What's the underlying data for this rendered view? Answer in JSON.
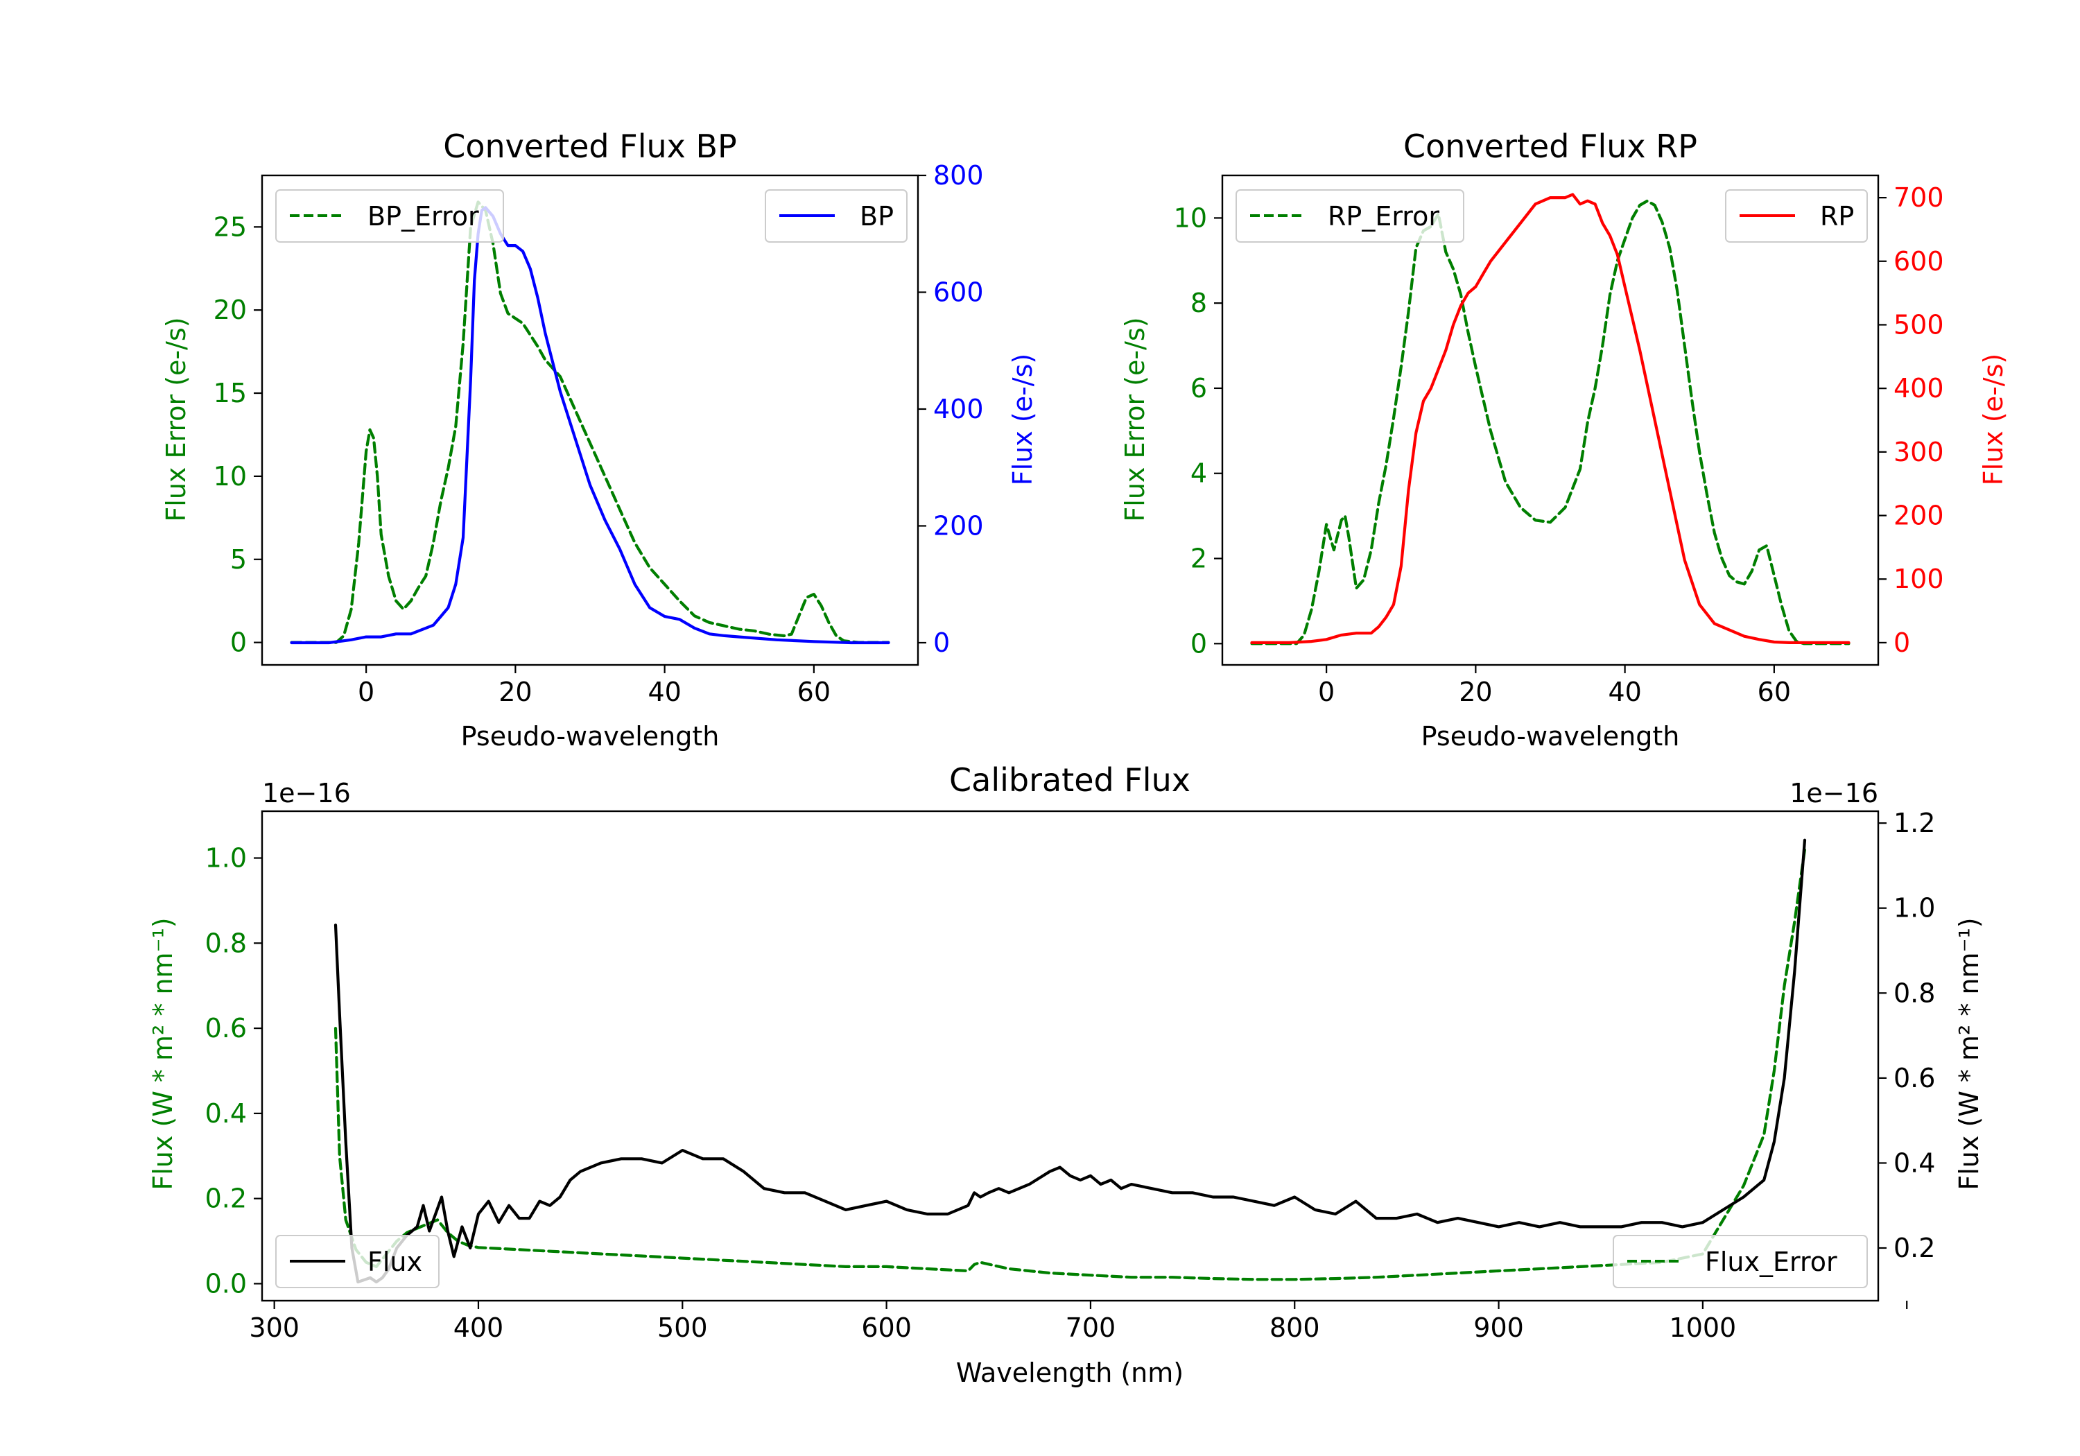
{
  "figure": {
    "background": "#ffffff"
  },
  "colors": {
    "green": "#007f00",
    "blue": "#0000ff",
    "red": "#ff0000",
    "black": "#000000"
  },
  "chart_data": [
    {
      "id": "bp",
      "type": "line",
      "title": "Converted Flux BP",
      "xlabel": "Pseudo-wavelength",
      "xlim": [
        -13.95,
        73.95
      ],
      "xticks": [
        0,
        20,
        40,
        60
      ],
      "left_axis": {
        "label": "Flux Error (e-/s)",
        "color": "#007f00",
        "lim": [
          -1.35,
          28.1
        ],
        "ticks": [
          0,
          5,
          10,
          15,
          20,
          25
        ],
        "tick_labels": [
          "0",
          "5",
          "10",
          "15",
          "20",
          "25"
        ]
      },
      "right_axis": {
        "label": "Flux (e-/s)",
        "color": "#0000ff",
        "lim": [
          -38,
          800
        ],
        "ticks": [
          0,
          200,
          400,
          600,
          800
        ],
        "tick_labels": [
          "0",
          "200",
          "400",
          "600",
          "800"
        ]
      },
      "series": [
        {
          "name": "BP_Error",
          "axis": "left",
          "style": "dashed",
          "color": "#007f00",
          "x": [
            -10,
            -4,
            -3,
            -2,
            -1,
            0,
            0.5,
            1,
            1.5,
            2,
            3,
            4,
            5,
            6,
            7,
            8,
            9,
            10,
            11,
            12,
            13,
            14,
            15,
            16,
            17,
            18,
            19,
            20,
            21,
            22,
            23,
            24,
            25,
            26,
            27,
            28,
            29,
            30,
            32,
            34,
            36,
            38,
            40,
            42,
            44,
            46,
            48,
            50,
            52,
            54,
            56,
            57,
            58,
            59,
            60,
            61,
            62,
            63,
            64,
            66,
            68,
            70
          ],
          "y": [
            0,
            0,
            0.4,
            2,
            6,
            11.5,
            12.8,
            12.3,
            10,
            6.5,
            4,
            2.5,
            2,
            2.5,
            3.3,
            4,
            6,
            8.5,
            10.5,
            13,
            18,
            25,
            26.5,
            26,
            24,
            21,
            19.8,
            19.5,
            19.2,
            18.5,
            17.8,
            17,
            16.5,
            16,
            15,
            14,
            13,
            12,
            10,
            8,
            6,
            4.5,
            3.5,
            2.5,
            1.6,
            1.2,
            1,
            0.8,
            0.7,
            0.5,
            0.4,
            0.5,
            1.6,
            2.7,
            2.9,
            2.2,
            1.2,
            0.4,
            0.1,
            0,
            0,
            0
          ]
        },
        {
          "name": "BP",
          "axis": "right",
          "style": "solid",
          "color": "#0000ff",
          "x": [
            -10,
            -5,
            -2,
            0,
            2,
            4,
            6,
            8,
            9,
            10,
            11,
            12,
            13,
            14,
            14.5,
            15,
            15.5,
            16,
            17,
            18,
            19,
            20,
            21,
            22,
            23,
            24,
            25,
            26,
            28,
            30,
            32,
            34,
            36,
            38,
            40,
            42,
            44,
            46,
            48,
            50,
            55,
            60,
            65,
            70
          ],
          "y": [
            0,
            0,
            5,
            10,
            10,
            15,
            15,
            25,
            30,
            45,
            60,
            100,
            180,
            450,
            620,
            700,
            740,
            745,
            730,
            700,
            680,
            680,
            670,
            640,
            590,
            530,
            480,
            430,
            350,
            270,
            210,
            160,
            100,
            60,
            45,
            40,
            25,
            15,
            12,
            10,
            5,
            2,
            0,
            0
          ]
        }
      ],
      "legends": [
        {
          "label": "BP_Error",
          "placement": "upper left"
        },
        {
          "label": "BP",
          "placement": "upper right"
        }
      ]
    },
    {
      "id": "rp",
      "type": "line",
      "title": "Converted Flux RP",
      "xlabel": "Pseudo-wavelength",
      "xlim": [
        -13.95,
        73.95
      ],
      "xticks": [
        0,
        20,
        40,
        60
      ],
      "left_axis": {
        "label": "Flux Error (e-/s)",
        "color": "#007f00",
        "lim": [
          -0.5,
          11.0
        ],
        "ticks": [
          0,
          2,
          4,
          6,
          8,
          10
        ],
        "tick_labels": [
          "0",
          "2",
          "4",
          "6",
          "8",
          "10"
        ]
      },
      "right_axis": {
        "label": "Flux (e-/s)",
        "color": "#ff0000",
        "lim": [
          -35,
          735
        ],
        "ticks": [
          0,
          100,
          200,
          300,
          400,
          500,
          600,
          700
        ],
        "tick_labels": [
          "0",
          "100",
          "200",
          "300",
          "400",
          "500",
          "600",
          "700"
        ]
      },
      "series": [
        {
          "name": "RP_Error",
          "axis": "left",
          "style": "dashed",
          "color": "#007f00",
          "x": [
            -10,
            -4,
            -3,
            -2,
            -1,
            0,
            1,
            2,
            2.5,
            3,
            4,
            5,
            6,
            7,
            8,
            9,
            10,
            11,
            12,
            13,
            14,
            15,
            16,
            17,
            18,
            19,
            20,
            22,
            24,
            26,
            28,
            30,
            32,
            34,
            35,
            36,
            37,
            38,
            39,
            40,
            41,
            42,
            43,
            44,
            45,
            46,
            47,
            48,
            49,
            50,
            51,
            52,
            53,
            54,
            55,
            56,
            57,
            58,
            59,
            60,
            61,
            62,
            63,
            64,
            65,
            70
          ],
          "y": [
            0,
            0,
            0.2,
            0.8,
            1.7,
            2.8,
            2.2,
            2.9,
            3.0,
            2.5,
            1.3,
            1.5,
            2.2,
            3.3,
            4.2,
            5.3,
            6.5,
            7.8,
            9.3,
            9.7,
            9.8,
            10.1,
            9.2,
            8.8,
            8.2,
            7.3,
            6.5,
            5.0,
            3.8,
            3.2,
            2.9,
            2.85,
            3.2,
            4.1,
            5.2,
            6.0,
            7.0,
            8.2,
            9.0,
            9.5,
            10.0,
            10.3,
            10.4,
            10.3,
            9.9,
            9.3,
            8.3,
            7.0,
            5.7,
            4.5,
            3.5,
            2.6,
            2.0,
            1.6,
            1.45,
            1.4,
            1.7,
            2.2,
            2.3,
            1.6,
            0.9,
            0.3,
            0.05,
            0,
            0,
            0
          ]
        },
        {
          "name": "RP",
          "axis": "right",
          "style": "solid",
          "color": "#ff0000",
          "x": [
            -10,
            -5,
            -2,
            0,
            2,
            4,
            6,
            7,
            8,
            9,
            10,
            11,
            12,
            13,
            14,
            15,
            16,
            17,
            18,
            19,
            20,
            21,
            22,
            24,
            26,
            28,
            30,
            32,
            33,
            34,
            35,
            36,
            37,
            38,
            39,
            40,
            41,
            42,
            44,
            46,
            48,
            50,
            52,
            54,
            56,
            58,
            60,
            62,
            64,
            66,
            70
          ],
          "y": [
            0,
            0,
            2,
            5,
            12,
            15,
            15,
            25,
            40,
            60,
            120,
            240,
            330,
            380,
            400,
            430,
            460,
            500,
            530,
            550,
            560,
            580,
            600,
            630,
            660,
            690,
            700,
            700,
            705,
            690,
            695,
            690,
            660,
            640,
            610,
            560,
            510,
            460,
            350,
            240,
            130,
            60,
            30,
            20,
            10,
            5,
            1,
            0,
            0,
            0,
            0
          ]
        }
      ],
      "legends": [
        {
          "label": "RP_Error",
          "placement": "upper left"
        },
        {
          "label": "RP",
          "placement": "upper right"
        }
      ]
    },
    {
      "id": "calibrated",
      "type": "line",
      "title": "Calibrated Flux",
      "xlabel": "Wavelength (nm)",
      "xlim": [
        294,
        1086
      ],
      "xticks": [
        300,
        400,
        500,
        600,
        700,
        800,
        900,
        1000,
        1100
      ],
      "xtick_labels": [
        "300",
        "400",
        "500",
        "600",
        "700",
        "800",
        "900",
        "1000",
        ""
      ],
      "left_axis": {
        "label": "Flux (W * m² * nm⁻¹)",
        "color": "#007f00",
        "offset_text": "1e−16",
        "lim": [
          -0.04,
          1.11
        ],
        "ticks": [
          0.0,
          0.2,
          0.4,
          0.6,
          0.8,
          1.0
        ],
        "tick_labels": [
          "0.0",
          "0.2",
          "0.4",
          "0.6",
          "0.8",
          "1.0"
        ]
      },
      "right_axis": {
        "label": "Flux (W * m² * nm⁻¹)",
        "color": "#000000",
        "offset_text": "1e−16",
        "lim": [
          0.076,
          1.228
        ],
        "ticks": [
          0.2,
          0.4,
          0.6,
          0.8,
          1.0,
          1.2
        ],
        "tick_labels": [
          "0.2",
          "0.4",
          "0.6",
          "0.8",
          "1.0",
          "1.2"
        ]
      },
      "series": [
        {
          "name": "Flux_Error",
          "axis": "left",
          "style": "dashed",
          "color": "#007f00",
          "x": [
            330,
            332,
            335,
            340,
            345,
            350,
            355,
            360,
            365,
            370,
            375,
            380,
            385,
            390,
            395,
            400,
            420,
            440,
            460,
            480,
            500,
            520,
            540,
            560,
            580,
            600,
            620,
            640,
            643,
            646,
            660,
            680,
            700,
            720,
            740,
            760,
            780,
            800,
            820,
            840,
            860,
            880,
            900,
            920,
            940,
            960,
            980,
            1000,
            1010,
            1020,
            1030,
            1035,
            1040,
            1045,
            1050
          ],
          "y": [
            0.6,
            0.3,
            0.15,
            0.08,
            0.05,
            0.04,
            0.07,
            0.1,
            0.12,
            0.13,
            0.14,
            0.15,
            0.12,
            0.1,
            0.09,
            0.085,
            0.08,
            0.075,
            0.07,
            0.065,
            0.06,
            0.055,
            0.05,
            0.045,
            0.04,
            0.04,
            0.035,
            0.03,
            0.045,
            0.05,
            0.035,
            0.025,
            0.02,
            0.015,
            0.015,
            0.012,
            0.01,
            0.01,
            0.012,
            0.015,
            0.02,
            0.025,
            0.03,
            0.035,
            0.04,
            0.045,
            0.05,
            0.07,
            0.15,
            0.23,
            0.35,
            0.5,
            0.7,
            0.85,
            1.02
          ]
        },
        {
          "name": "Flux",
          "axis": "right",
          "style": "solid",
          "color": "#000000",
          "x": [
            330,
            332,
            335,
            338,
            341,
            344,
            347,
            350,
            353,
            356,
            360,
            365,
            370,
            373,
            376,
            379,
            382,
            385,
            388,
            392,
            396,
            400,
            405,
            410,
            415,
            420,
            425,
            430,
            435,
            440,
            445,
            450,
            460,
            470,
            480,
            490,
            500,
            505,
            510,
            520,
            530,
            540,
            550,
            560,
            570,
            580,
            590,
            600,
            610,
            620,
            630,
            640,
            643,
            646,
            650,
            655,
            660,
            670,
            680,
            685,
            690,
            695,
            700,
            705,
            710,
            715,
            720,
            730,
            740,
            750,
            760,
            770,
            780,
            790,
            800,
            810,
            820,
            830,
            840,
            850,
            860,
            870,
            880,
            890,
            900,
            910,
            920,
            930,
            940,
            950,
            960,
            970,
            980,
            990,
            1000,
            1010,
            1020,
            1030,
            1035,
            1040,
            1045,
            1050
          ],
          "y": [
            0.96,
            0.75,
            0.45,
            0.2,
            0.12,
            0.125,
            0.13,
            0.12,
            0.13,
            0.15,
            0.2,
            0.23,
            0.25,
            0.3,
            0.24,
            0.28,
            0.32,
            0.24,
            0.18,
            0.25,
            0.2,
            0.28,
            0.31,
            0.26,
            0.3,
            0.27,
            0.27,
            0.31,
            0.3,
            0.32,
            0.36,
            0.38,
            0.4,
            0.41,
            0.41,
            0.4,
            0.43,
            0.42,
            0.41,
            0.41,
            0.38,
            0.34,
            0.33,
            0.33,
            0.31,
            0.29,
            0.3,
            0.31,
            0.29,
            0.28,
            0.28,
            0.3,
            0.33,
            0.32,
            0.33,
            0.34,
            0.33,
            0.35,
            0.38,
            0.39,
            0.37,
            0.36,
            0.37,
            0.35,
            0.36,
            0.34,
            0.35,
            0.34,
            0.33,
            0.33,
            0.32,
            0.32,
            0.31,
            0.3,
            0.32,
            0.29,
            0.28,
            0.31,
            0.27,
            0.27,
            0.28,
            0.26,
            0.27,
            0.26,
            0.25,
            0.26,
            0.25,
            0.26,
            0.25,
            0.25,
            0.25,
            0.26,
            0.26,
            0.25,
            0.26,
            0.29,
            0.32,
            0.36,
            0.45,
            0.6,
            0.85,
            1.16
          ]
        }
      ],
      "legends": [
        {
          "label": "Flux",
          "placement": "lower left"
        },
        {
          "label": "Flux_Error",
          "placement": "lower right"
        }
      ]
    }
  ]
}
